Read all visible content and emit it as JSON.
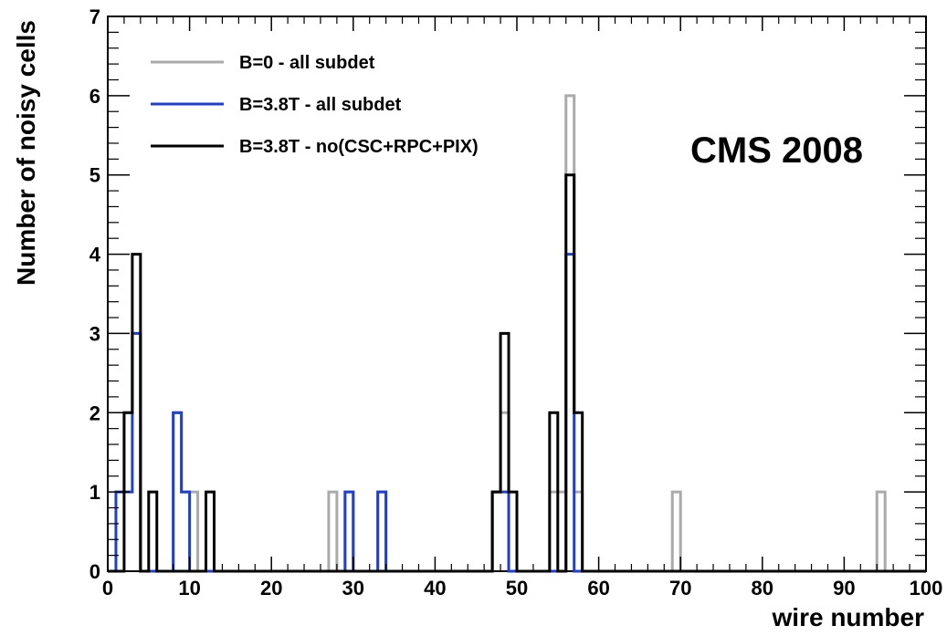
{
  "chart_data": {
    "type": "histogram-step",
    "xlabel": "wire number",
    "ylabel": "Number of noisy cells",
    "xlim": [
      0,
      100
    ],
    "ylim": [
      0,
      7
    ],
    "x_ticks": [
      0,
      10,
      20,
      30,
      40,
      50,
      60,
      70,
      80,
      90,
      100
    ],
    "y_ticks": [
      0,
      1,
      2,
      3,
      4,
      5,
      6,
      7
    ],
    "bin_width": 1,
    "grid": false,
    "legend_position": "top-left",
    "annotation": "CMS 2008",
    "series": [
      {
        "name": "B=0 - all subdet",
        "color": "#aaaaaa",
        "bins": [
          [
            1,
            1
          ],
          [
            2,
            2
          ],
          [
            3,
            3
          ],
          [
            4,
            0
          ],
          [
            5,
            0
          ],
          [
            6,
            0
          ],
          [
            7,
            0
          ],
          [
            8,
            2
          ],
          [
            9,
            1
          ],
          [
            10,
            1
          ],
          [
            27,
            1
          ],
          [
            29,
            1
          ],
          [
            33,
            1
          ],
          [
            47,
            1
          ],
          [
            48,
            2
          ],
          [
            54,
            1
          ],
          [
            55,
            1
          ],
          [
            56,
            6
          ],
          [
            57,
            1
          ],
          [
            69,
            1
          ],
          [
            94,
            1
          ]
        ]
      },
      {
        "name": "B=3.8T - all subdet",
        "color": "#1f3fd4",
        "bins": [
          [
            1,
            1
          ],
          [
            2,
            1
          ],
          [
            3,
            3
          ],
          [
            8,
            2
          ],
          [
            9,
            1
          ],
          [
            29,
            1
          ],
          [
            33,
            1
          ],
          [
            47,
            1
          ],
          [
            48,
            1
          ],
          [
            56,
            4
          ]
        ]
      },
      {
        "name": "B=3.8T - no(CSC+RPC+PIX)",
        "color": "#000000",
        "bins": [
          [
            2,
            2
          ],
          [
            3,
            4
          ],
          [
            5,
            1
          ],
          [
            12,
            1
          ],
          [
            47,
            1
          ],
          [
            48,
            3
          ],
          [
            49,
            1
          ],
          [
            54,
            2
          ],
          [
            56,
            5
          ],
          [
            57,
            2
          ]
        ]
      }
    ]
  }
}
